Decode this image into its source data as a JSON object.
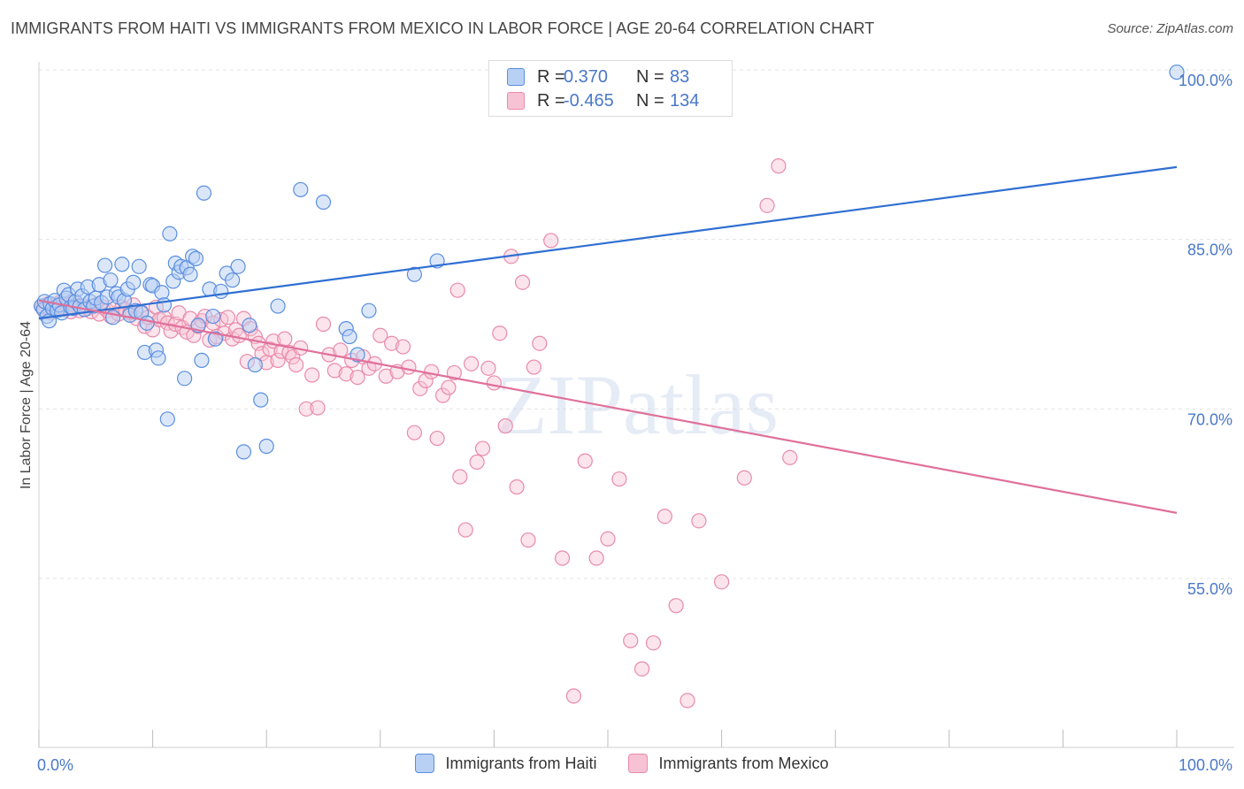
{
  "title": "IMMIGRANTS FROM HAITI VS IMMIGRANTS FROM MEXICO IN LABOR FORCE | AGE 20-64 CORRELATION CHART",
  "source": "Source: ZipAtlas.com",
  "watermark": "ZIPatlas",
  "legend_top": {
    "rows": [
      {
        "r_label": "R =",
        "r_value": "0.370",
        "n_label": "N =",
        "n_value": "83"
      },
      {
        "r_label": "R =",
        "r_value": "-0.465",
        "n_label": "N =",
        "n_value": "134"
      }
    ]
  },
  "colors": {
    "haiti_fill": "#b8d0f4",
    "haiti_stroke": "#5a8ee0",
    "haiti_line": "#2f6fd2",
    "mexico_fill": "#f7c3d4",
    "mexico_stroke": "#e98aaa",
    "mexico_line": "#e0709a",
    "tick_text": "#4a78c8",
    "grid": "#e3e3e3"
  },
  "chart_data": {
    "type": "scatter",
    "title": "IMMIGRANTS FROM HAITI VS IMMIGRANTS FROM MEXICO IN LABOR FORCE | AGE 20-64 CORRELATION CHART",
    "xlabel": "",
    "ylabel": "In Labor Force | Age 20-64",
    "xlim": [
      0,
      100
    ],
    "ylim": [
      40,
      102
    ],
    "x_tick_labels": [
      "0.0%",
      "100.0%"
    ],
    "y_ticks": [
      100,
      85,
      70,
      55
    ],
    "y_tick_labels": [
      "100.0%",
      "85.0%",
      "70.0%",
      "55.0%"
    ],
    "grid": true,
    "legend": "bottom",
    "series": [
      {
        "name": "Immigrants from Haiti",
        "color": "#5a8ee0",
        "trend": {
          "x": [
            0,
            100
          ],
          "y": [
            78.0,
            91.4
          ]
        },
        "points": [
          [
            0.2,
            79.1
          ],
          [
            0.4,
            78.8
          ],
          [
            0.5,
            79.5
          ],
          [
            0.7,
            78.2
          ],
          [
            0.9,
            77.8
          ],
          [
            1.0,
            79.3
          ],
          [
            1.2,
            78.9
          ],
          [
            1.4,
            79.6
          ],
          [
            1.6,
            78.7
          ],
          [
            1.8,
            79.2
          ],
          [
            2.0,
            78.5
          ],
          [
            2.2,
            80.5
          ],
          [
            2.4,
            79.8
          ],
          [
            2.6,
            80.1
          ],
          [
            2.8,
            79.0
          ],
          [
            3.0,
            78.9
          ],
          [
            3.2,
            79.5
          ],
          [
            3.4,
            80.6
          ],
          [
            3.6,
            79.1
          ],
          [
            3.8,
            80.0
          ],
          [
            4.0,
            78.8
          ],
          [
            4.3,
            80.8
          ],
          [
            4.5,
            79.5
          ],
          [
            4.8,
            79.1
          ],
          [
            5.0,
            79.8
          ],
          [
            5.3,
            81.0
          ],
          [
            5.5,
            79.4
          ],
          [
            5.8,
            82.7
          ],
          [
            6.0,
            79.9
          ],
          [
            6.3,
            81.4
          ],
          [
            6.5,
            78.1
          ],
          [
            6.8,
            80.2
          ],
          [
            7.0,
            79.9
          ],
          [
            7.3,
            82.8
          ],
          [
            7.5,
            79.6
          ],
          [
            7.8,
            80.6
          ],
          [
            8.0,
            78.3
          ],
          [
            8.3,
            81.2
          ],
          [
            8.5,
            78.7
          ],
          [
            8.8,
            82.6
          ],
          [
            9.0,
            78.5
          ],
          [
            9.3,
            75.0
          ],
          [
            9.5,
            77.6
          ],
          [
            9.8,
            81.0
          ],
          [
            10.0,
            80.9
          ],
          [
            10.3,
            75.2
          ],
          [
            10.5,
            74.5
          ],
          [
            10.8,
            80.3
          ],
          [
            11.0,
            79.2
          ],
          [
            11.3,
            69.1
          ],
          [
            11.5,
            85.5
          ],
          [
            11.8,
            81.3
          ],
          [
            12.0,
            82.9
          ],
          [
            12.3,
            82.1
          ],
          [
            12.5,
            82.6
          ],
          [
            12.8,
            72.7
          ],
          [
            13.0,
            82.5
          ],
          [
            13.3,
            81.9
          ],
          [
            13.5,
            83.5
          ],
          [
            13.8,
            83.3
          ],
          [
            14.0,
            77.4
          ],
          [
            14.3,
            74.3
          ],
          [
            14.5,
            89.1
          ],
          [
            15.0,
            80.6
          ],
          [
            15.3,
            78.2
          ],
          [
            15.5,
            76.2
          ],
          [
            16.0,
            80.4
          ],
          [
            16.5,
            82.0
          ],
          [
            17.0,
            81.4
          ],
          [
            17.5,
            82.6
          ],
          [
            18.0,
            66.2
          ],
          [
            18.5,
            77.4
          ],
          [
            19.0,
            73.9
          ],
          [
            19.5,
            70.8
          ],
          [
            20.0,
            66.7
          ],
          [
            21.0,
            79.1
          ],
          [
            23.0,
            89.4
          ],
          [
            25.0,
            88.3
          ],
          [
            27.0,
            77.1
          ],
          [
            27.3,
            76.4
          ],
          [
            28.0,
            74.8
          ],
          [
            29.0,
            78.7
          ],
          [
            33.0,
            81.9
          ],
          [
            35.0,
            83.1
          ],
          [
            100.0,
            99.8
          ]
        ]
      },
      {
        "name": "Immigrants from Mexico",
        "color": "#e98aaa",
        "trend": {
          "x": [
            0,
            100
          ],
          "y": [
            79.6,
            60.8
          ]
        },
        "points": [
          [
            0.3,
            79.0
          ],
          [
            0.5,
            78.7
          ],
          [
            0.8,
            79.3
          ],
          [
            1.0,
            78.5
          ],
          [
            1.3,
            79.1
          ],
          [
            1.5,
            78.9
          ],
          [
            1.8,
            79.4
          ],
          [
            2.0,
            79.0
          ],
          [
            2.3,
            78.8
          ],
          [
            2.5,
            79.2
          ],
          [
            2.8,
            78.6
          ],
          [
            3.0,
            79.5
          ],
          [
            3.3,
            79.0
          ],
          [
            3.6,
            78.7
          ],
          [
            4.0,
            79.1
          ],
          [
            4.3,
            78.9
          ],
          [
            4.6,
            78.6
          ],
          [
            5.0,
            79.2
          ],
          [
            5.3,
            78.4
          ],
          [
            5.6,
            79.0
          ],
          [
            6.0,
            78.7
          ],
          [
            6.3,
            78.2
          ],
          [
            6.6,
            79.1
          ],
          [
            7.0,
            78.4
          ],
          [
            7.3,
            79.0
          ],
          [
            7.6,
            78.8
          ],
          [
            8.0,
            78.5
          ],
          [
            8.3,
            79.2
          ],
          [
            8.6,
            78.0
          ],
          [
            9.0,
            78.6
          ],
          [
            9.3,
            77.3
          ],
          [
            9.6,
            78.1
          ],
          [
            10.0,
            77.0
          ],
          [
            10.3,
            79.0
          ],
          [
            10.6,
            77.9
          ],
          [
            11.0,
            78.1
          ],
          [
            11.3,
            77.6
          ],
          [
            11.6,
            76.9
          ],
          [
            12.0,
            77.5
          ],
          [
            12.3,
            78.5
          ],
          [
            12.6,
            77.2
          ],
          [
            13.0,
            76.8
          ],
          [
            13.3,
            78.0
          ],
          [
            13.6,
            76.5
          ],
          [
            14.0,
            77.3
          ],
          [
            14.3,
            77.8
          ],
          [
            14.6,
            78.2
          ],
          [
            15.0,
            76.1
          ],
          [
            15.3,
            77.6
          ],
          [
            15.6,
            76.4
          ],
          [
            16.0,
            77.9
          ],
          [
            16.3,
            76.7
          ],
          [
            16.6,
            78.1
          ],
          [
            17.0,
            76.2
          ],
          [
            17.3,
            77.0
          ],
          [
            17.6,
            76.5
          ],
          [
            18.0,
            78.0
          ],
          [
            18.3,
            74.2
          ],
          [
            18.6,
            77.1
          ],
          [
            19.0,
            76.4
          ],
          [
            19.3,
            75.8
          ],
          [
            19.6,
            74.9
          ],
          [
            20.0,
            74.1
          ],
          [
            20.3,
            75.3
          ],
          [
            20.6,
            76.0
          ],
          [
            21.0,
            74.3
          ],
          [
            21.3,
            75.1
          ],
          [
            21.6,
            76.2
          ],
          [
            22.0,
            75.0
          ],
          [
            22.3,
            74.6
          ],
          [
            22.6,
            73.9
          ],
          [
            23.0,
            75.4
          ],
          [
            23.5,
            70.0
          ],
          [
            24.0,
            73.0
          ],
          [
            24.5,
            70.1
          ],
          [
            25.0,
            77.5
          ],
          [
            25.5,
            74.8
          ],
          [
            26.0,
            73.4
          ],
          [
            26.5,
            75.2
          ],
          [
            27.0,
            73.1
          ],
          [
            27.5,
            74.3
          ],
          [
            28.0,
            72.8
          ],
          [
            28.5,
            74.6
          ],
          [
            29.0,
            73.6
          ],
          [
            29.5,
            74.0
          ],
          [
            30.0,
            76.5
          ],
          [
            30.5,
            72.9
          ],
          [
            31.0,
            75.8
          ],
          [
            31.5,
            73.3
          ],
          [
            32.0,
            75.5
          ],
          [
            32.5,
            73.7
          ],
          [
            33.0,
            67.9
          ],
          [
            33.5,
            71.8
          ],
          [
            34.0,
            72.5
          ],
          [
            34.5,
            73.3
          ],
          [
            35.0,
            67.4
          ],
          [
            35.5,
            71.2
          ],
          [
            36.0,
            71.9
          ],
          [
            36.5,
            73.2
          ],
          [
            37.0,
            64.0
          ],
          [
            37.5,
            59.3
          ],
          [
            38.0,
            74.0
          ],
          [
            38.5,
            65.3
          ],
          [
            39.0,
            66.5
          ],
          [
            39.5,
            73.6
          ],
          [
            40.0,
            72.3
          ],
          [
            41.0,
            68.5
          ],
          [
            42.0,
            63.1
          ],
          [
            43.0,
            58.4
          ],
          [
            44.0,
            75.8
          ],
          [
            45.0,
            84.9
          ],
          [
            46.0,
            56.8
          ],
          [
            47.0,
            44.6
          ],
          [
            48.0,
            65.4
          ],
          [
            49.0,
            56.8
          ],
          [
            50.0,
            58.5
          ],
          [
            51.0,
            63.8
          ],
          [
            52.0,
            49.5
          ],
          [
            53.0,
            47.0
          ],
          [
            54.0,
            49.3
          ],
          [
            55.0,
            60.5
          ],
          [
            56.0,
            52.6
          ],
          [
            57.0,
            44.2
          ],
          [
            58.0,
            60.1
          ],
          [
            60.0,
            54.7
          ],
          [
            62.0,
            63.9
          ],
          [
            64.0,
            88.0
          ],
          [
            65.0,
            91.5
          ],
          [
            66.0,
            65.7
          ],
          [
            40.5,
            76.7
          ],
          [
            41.5,
            83.5
          ],
          [
            42.5,
            81.2
          ],
          [
            43.5,
            73.7
          ],
          [
            36.8,
            80.5
          ]
        ]
      }
    ]
  },
  "legend_bottom": {
    "items": [
      {
        "label": "Immigrants from Haiti"
      },
      {
        "label": "Immigrants from Mexico"
      }
    ]
  }
}
